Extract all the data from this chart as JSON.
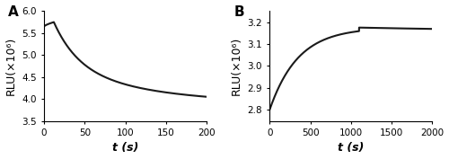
{
  "panel_A": {
    "label": "A",
    "xlabel": "t (s)",
    "ylabel": "RLU(×10⁶)",
    "xlim": [
      0,
      200
    ],
    "ylim": [
      3.5,
      6.0
    ],
    "yticks": [
      3.5,
      4.0,
      4.5,
      5.0,
      5.5,
      6.0
    ],
    "xticks": [
      0,
      50,
      100,
      150,
      200
    ],
    "t0_y": 5.65,
    "peak_t": 12,
    "peak_y": 5.75,
    "end_y": 3.87,
    "tau_fall1": 30,
    "tau_fall2": 120,
    "line_color": "#1a1a1a",
    "line_width": 1.5
  },
  "panel_B": {
    "label": "B",
    "xlabel": "t (s)",
    "ylabel": "RLU(×10⁶)",
    "xlim": [
      0,
      2000
    ],
    "ylim": [
      2.75,
      3.25
    ],
    "yticks": [
      2.8,
      2.9,
      3.0,
      3.1,
      3.2
    ],
    "xticks": [
      0,
      500,
      1000,
      1500,
      2000
    ],
    "start_y": 2.8,
    "peak_t": 1100,
    "peak_y": 3.175,
    "end_y": 3.155,
    "tau_rise": 350,
    "tau_fall": 2500,
    "line_color": "#1a1a1a",
    "line_width": 1.5
  },
  "background_color": "#ffffff",
  "label_fontsize": 9,
  "tick_fontsize": 7.5,
  "panel_label_fontsize": 11
}
